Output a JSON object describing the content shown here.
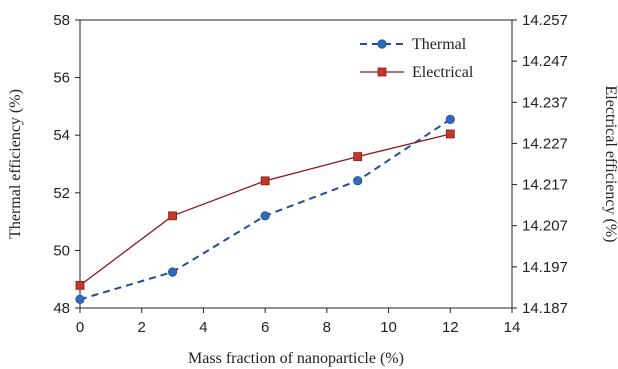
{
  "chart_data": {
    "type": "line",
    "xlabel": "Mass fraction of nanoparticle (%)",
    "ylabel_left": "Thermal efficiency (%)",
    "ylabel_right": "Electrical efficiency (%)",
    "xlim": [
      0,
      14
    ],
    "ylim_left": [
      48,
      58
    ],
    "ylim_right": [
      14.187,
      14.257
    ],
    "x_ticks": [
      "0",
      "2",
      "4",
      "6",
      "8",
      "10",
      "12",
      "14"
    ],
    "y_left_ticks": [
      "48",
      "50",
      "52",
      "54",
      "56",
      "58"
    ],
    "y_right_ticks": [
      "14.187",
      "14.197",
      "14.207",
      "14.217",
      "14.227",
      "14.237",
      "14.247",
      "14.257"
    ],
    "grid": false,
    "legend_position": "top-right",
    "series": [
      {
        "name": "Thermal",
        "axis": "left",
        "style": "dashed",
        "marker": "circle",
        "color": "#1f4e9a",
        "marker_color": "#2e6bb8",
        "x": [
          0,
          3,
          6,
          9,
          12
        ],
        "y": [
          48.3,
          49.25,
          51.2,
          52.42,
          54.55
        ]
      },
      {
        "name": "Electrical",
        "axis": "right",
        "style": "solid",
        "marker": "square",
        "color": "#8b1a1a",
        "marker_color": "#c0392b",
        "x": [
          0,
          3,
          6,
          9,
          12
        ],
        "y": [
          14.1925,
          14.2094,
          14.2179,
          14.2238,
          14.2293
        ]
      }
    ]
  }
}
